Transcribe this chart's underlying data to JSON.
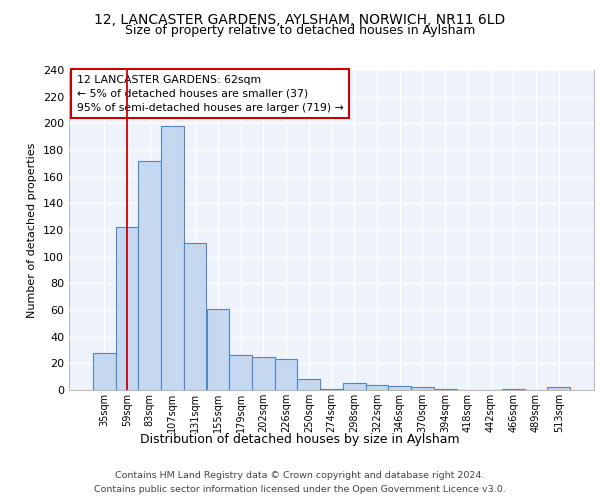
{
  "title1": "12, LANCASTER GARDENS, AYLSHAM, NORWICH, NR11 6LD",
  "title2": "Size of property relative to detached houses in Aylsham",
  "xlabel": "Distribution of detached houses by size in Aylsham",
  "ylabel": "Number of detached properties",
  "bar_labels": [
    "35sqm",
    "59sqm",
    "83sqm",
    "107sqm",
    "131sqm",
    "155sqm",
    "179sqm",
    "202sqm",
    "226sqm",
    "250sqm",
    "274sqm",
    "298sqm",
    "322sqm",
    "346sqm",
    "370sqm",
    "394sqm",
    "418sqm",
    "442sqm",
    "466sqm",
    "489sqm",
    "513sqm"
  ],
  "bar_values": [
    28,
    122,
    172,
    198,
    110,
    61,
    26,
    25,
    23,
    8,
    1,
    5,
    4,
    3,
    2,
    1,
    0,
    0,
    1,
    0,
    2
  ],
  "bar_color": "#c5d8f0",
  "bar_edge_color": "#4f86c6",
  "vline_x": 1.0,
  "vline_color": "#cc0000",
  "annotation_lines": [
    "12 LANCASTER GARDENS: 62sqm",
    "← 5% of detached houses are smaller (37)",
    "95% of semi-detached houses are larger (719) →"
  ],
  "annotation_box_color": "#ffffff",
  "annotation_box_edge": "#cc0000",
  "ylim": [
    0,
    240
  ],
  "yticks": [
    0,
    20,
    40,
    60,
    80,
    100,
    120,
    140,
    160,
    180,
    200,
    220,
    240
  ],
  "footer_line1": "Contains HM Land Registry data © Crown copyright and database right 2024.",
  "footer_line2": "Contains public sector information licensed under the Open Government Licence v3.0.",
  "background_color": "#edf2fb",
  "grid_color": "#ffffff"
}
